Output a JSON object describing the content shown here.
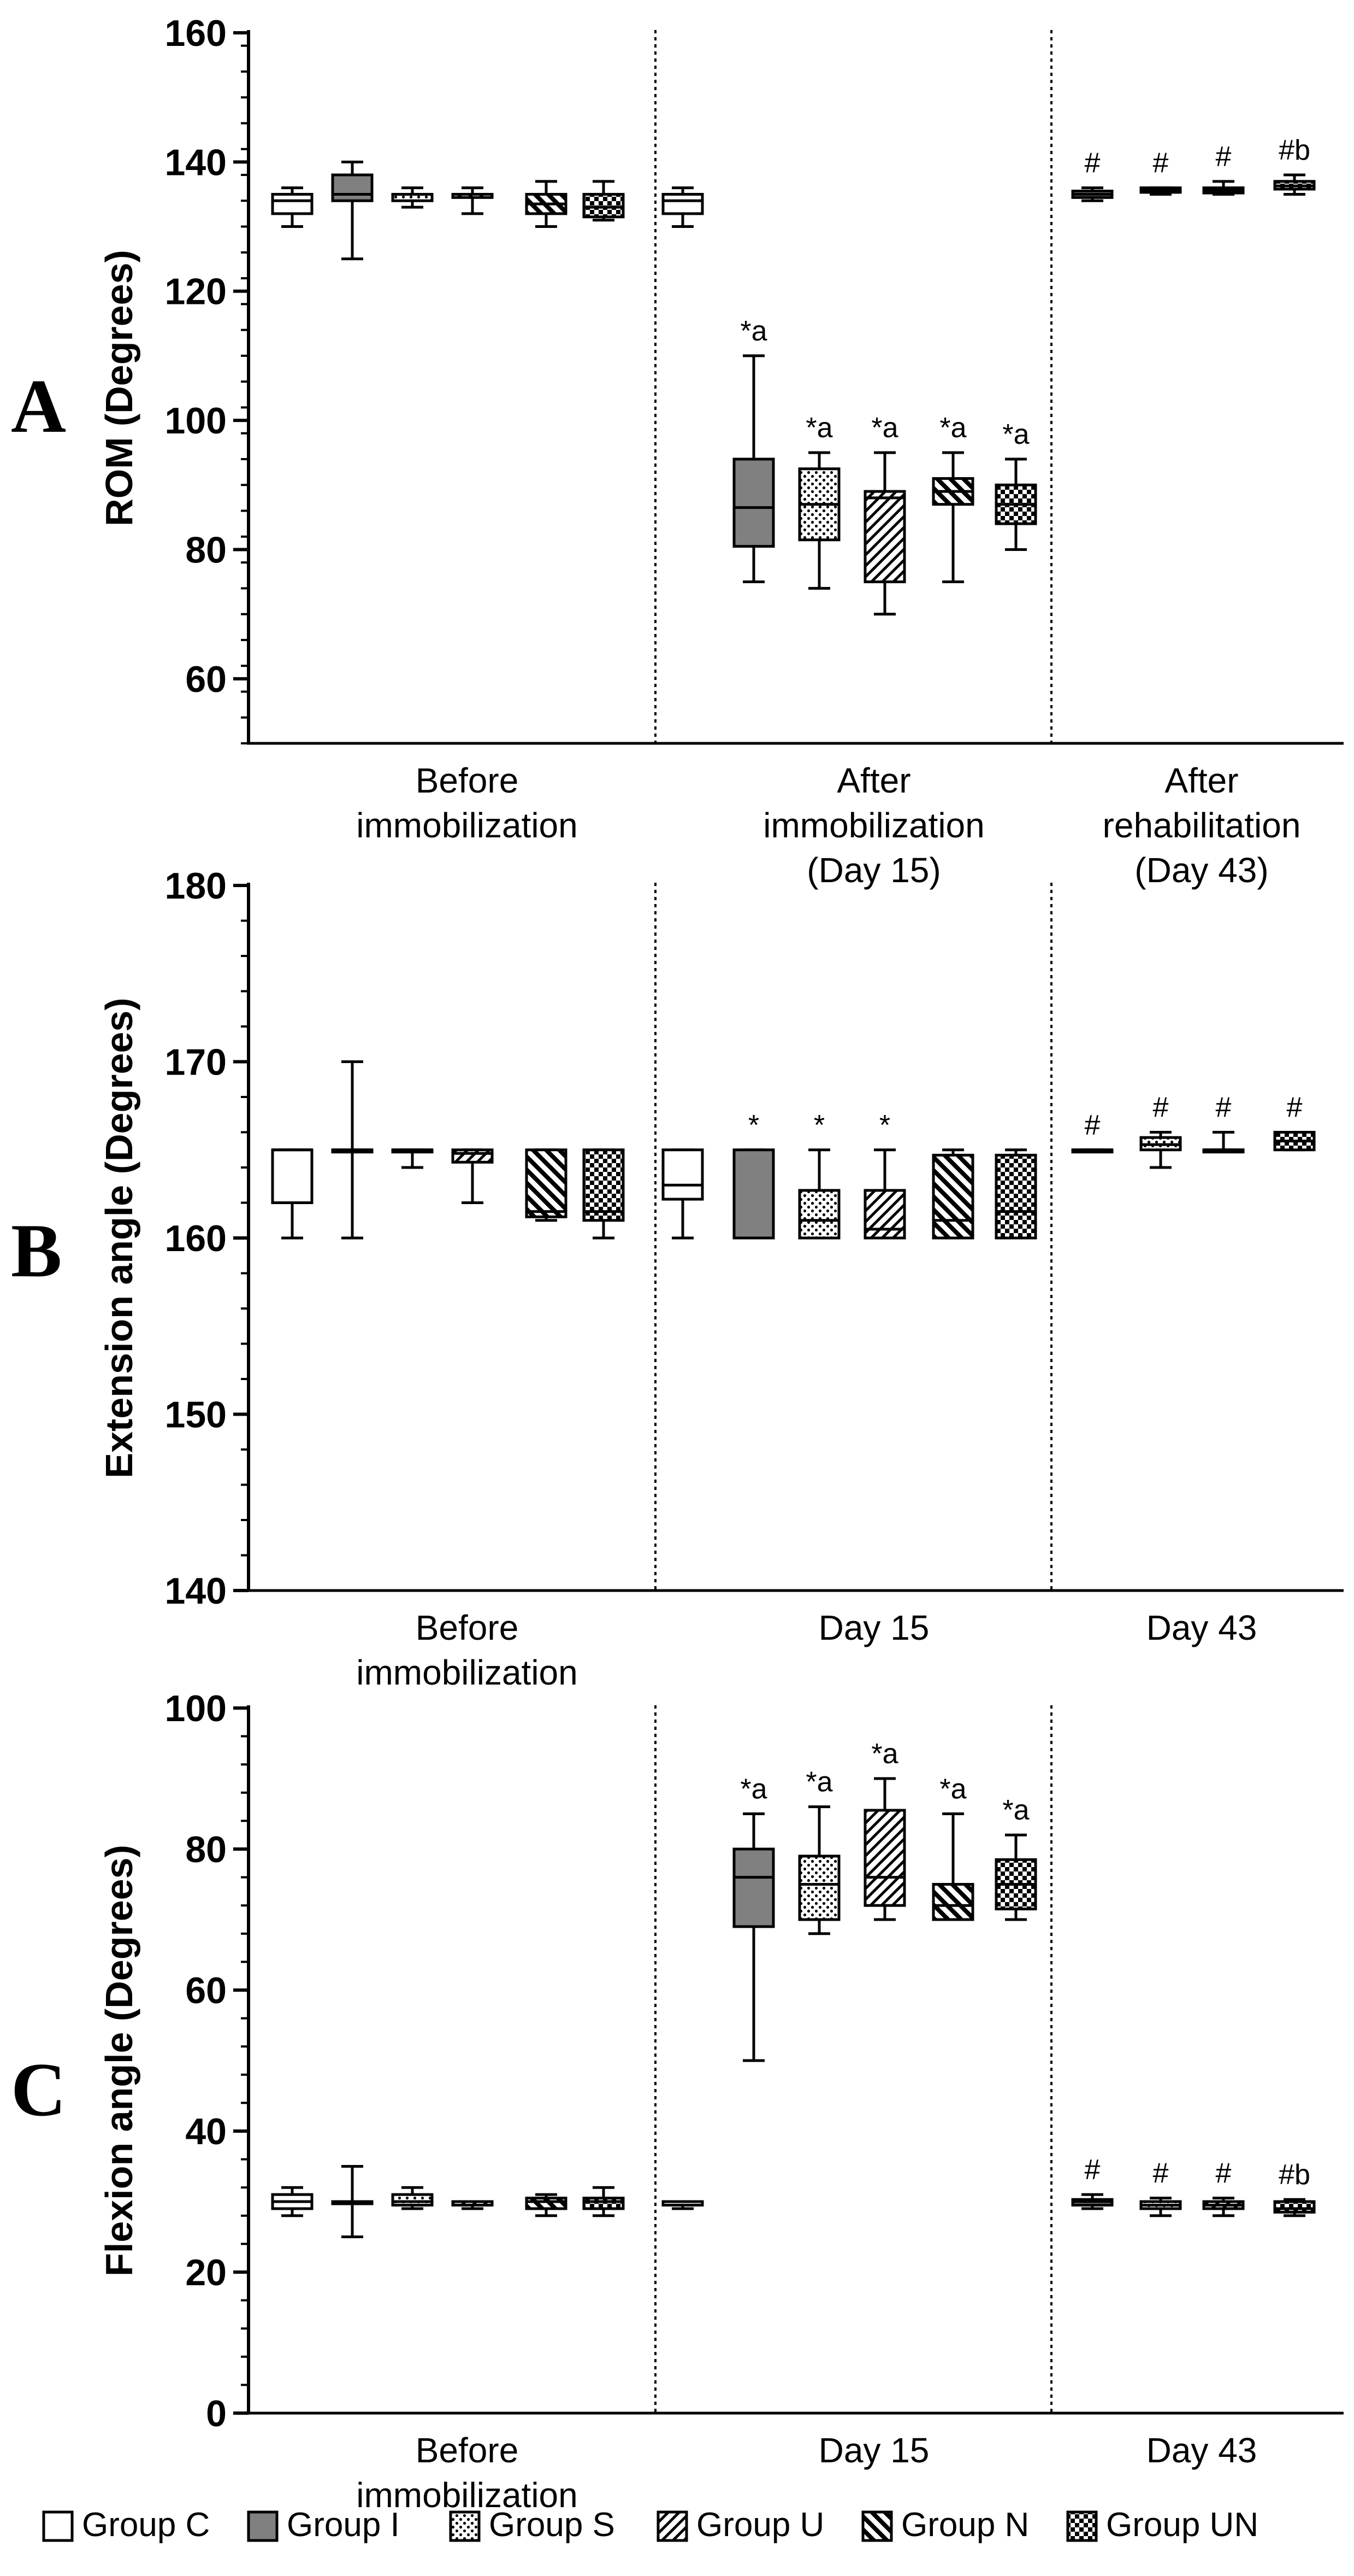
{
  "legend": [
    {
      "label": "Group C",
      "pattern": "white"
    },
    {
      "label": "Group I",
      "pattern": "gray"
    },
    {
      "label": "Group S",
      "pattern": "dots"
    },
    {
      "label": "Group U",
      "pattern": "diagup"
    },
    {
      "label": "Group N",
      "pattern": "diagdown"
    },
    {
      "label": "Group UN",
      "pattern": "checker"
    }
  ],
  "chart_data": [
    {
      "panel": "A",
      "type": "box",
      "ylabel": "ROM (Degrees)",
      "ylim": [
        50,
        160
      ],
      "yticks": [
        60,
        80,
        100,
        120,
        140,
        160
      ],
      "sections": [
        {
          "label_lines": [
            "Before",
            "immobilization"
          ],
          "boxes": [
            {
              "group": "Group C",
              "min": 130,
              "q1": 132,
              "median": 134,
              "q3": 135,
              "max": 136
            },
            {
              "group": "Group I",
              "min": 125,
              "q1": 134,
              "median": 135,
              "q3": 138,
              "max": 140
            },
            {
              "group": "Group S",
              "min": 133,
              "q1": 134,
              "median": 135,
              "q3": 135,
              "max": 136
            },
            {
              "group": "Group U",
              "min": 132,
              "q1": 134.5,
              "median": 135,
              "q3": 135,
              "max": 136
            },
            {
              "group": "Group N",
              "min": 130,
              "q1": 132,
              "median": 133.5,
              "q3": 135,
              "max": 137
            },
            {
              "group": "Group UN",
              "min": 131,
              "q1": 131.5,
              "median": 133,
              "q3": 135,
              "max": 137
            }
          ]
        },
        {
          "label_lines": [
            "After",
            "immobilization",
            "(Day 15)"
          ],
          "boxes": [
            {
              "group": "Group C",
              "min": 130,
              "q1": 132,
              "median": 134,
              "q3": 135,
              "max": 136
            },
            {
              "group": "Group I",
              "min": 75,
              "q1": 80.5,
              "median": 86.5,
              "q3": 94,
              "max": 110,
              "annotation": "*a"
            },
            {
              "group": "Group S",
              "min": 74,
              "q1": 81.5,
              "median": 87,
              "q3": 92.5,
              "max": 95,
              "annotation": "*a"
            },
            {
              "group": "Group U",
              "min": 70,
              "q1": 75,
              "median": 88,
              "q3": 89,
              "max": 95,
              "annotation": "*a"
            },
            {
              "group": "Group N",
              "min": 75,
              "q1": 87,
              "median": 89,
              "q3": 91,
              "max": 95,
              "annotation": "*a"
            },
            {
              "group": "Group UN",
              "min": 80,
              "q1": 84,
              "median": 87,
              "q3": 90,
              "max": 94,
              "annotation": "*a"
            }
          ]
        },
        {
          "label_lines": [
            "After",
            "rehabilitation",
            "(Day 43)"
          ],
          "boxes": [
            {
              "group": "Group I",
              "min": 134,
              "q1": 134.5,
              "median": 135,
              "q3": 135.5,
              "max": 136,
              "annotation": "#"
            },
            {
              "group": "Group S",
              "min": 135,
              "q1": 135.3,
              "median": 135.6,
              "q3": 136,
              "max": 136,
              "annotation": "#"
            },
            {
              "group": "Group U",
              "min": 135,
              "q1": 135.2,
              "median": 135.6,
              "q3": 136,
              "max": 137,
              "annotation": "#"
            },
            {
              "group": "Group UN",
              "min": 135,
              "q1": 135.8,
              "median": 136.3,
              "q3": 137,
              "max": 138,
              "annotation": "#b"
            }
          ]
        }
      ]
    },
    {
      "panel": "B",
      "type": "box",
      "ylabel": "Extension angle (Degrees)",
      "ylim": [
        140,
        180
      ],
      "yticks": [
        140,
        150,
        160,
        170,
        180
      ],
      "sections": [
        {
          "label_lines": [
            "Before",
            "immobilization"
          ],
          "boxes": [
            {
              "group": "Group C",
              "min": 160,
              "q1": 162,
              "median": 165,
              "q3": 165,
              "max": 165
            },
            {
              "group": "Group I",
              "min": 160,
              "q1": 165,
              "median": 165,
              "q3": 165,
              "max": 170
            },
            {
              "group": "Group S",
              "min": 164,
              "q1": 165,
              "median": 165,
              "q3": 165,
              "max": 165
            },
            {
              "group": "Group U",
              "min": 162,
              "q1": 164.3,
              "median": 164.8,
              "q3": 165,
              "max": 165
            },
            {
              "group": "Group N",
              "min": 161,
              "q1": 161.2,
              "median": 161.5,
              "q3": 165,
              "max": 165
            },
            {
              "group": "Group UN",
              "min": 160,
              "q1": 161,
              "median": 161.5,
              "q3": 165,
              "max": 165
            }
          ]
        },
        {
          "label_lines": [
            "Day 15"
          ],
          "boxes": [
            {
              "group": "Group C",
              "min": 160,
              "q1": 162.2,
              "median": 163,
              "q3": 165,
              "max": 165
            },
            {
              "group": "Group I",
              "min": 160,
              "q1": 160,
              "median": 160,
              "q3": 165,
              "max": 165,
              "annotation": "*"
            },
            {
              "group": "Group S",
              "min": 160,
              "q1": 160,
              "median": 161,
              "q3": 162.7,
              "max": 165,
              "annotation": "*"
            },
            {
              "group": "Group U",
              "min": 160,
              "q1": 160,
              "median": 160.5,
              "q3": 162.7,
              "max": 165,
              "annotation": "*"
            },
            {
              "group": "Group N",
              "min": 160,
              "q1": 160,
              "median": 161,
              "q3": 164.7,
              "max": 165
            },
            {
              "group": "Group UN",
              "min": 160,
              "q1": 160,
              "median": 161.5,
              "q3": 164.7,
              "max": 165
            }
          ]
        },
        {
          "label_lines": [
            "Day 43"
          ],
          "boxes": [
            {
              "group": "Group I",
              "min": 165,
              "q1": 165,
              "median": 165,
              "q3": 165,
              "max": 165,
              "annotation": "#"
            },
            {
              "group": "Group S",
              "min": 164,
              "q1": 165,
              "median": 165.3,
              "q3": 165.7,
              "max": 166,
              "annotation": "#"
            },
            {
              "group": "Group U",
              "min": 165,
              "q1": 165,
              "median": 165,
              "q3": 165,
              "max": 166,
              "annotation": "#"
            },
            {
              "group": "Group UN",
              "min": 165,
              "q1": 165,
              "median": 165.5,
              "q3": 166,
              "max": 166,
              "annotation": "#"
            }
          ]
        }
      ]
    },
    {
      "panel": "C",
      "type": "box",
      "ylabel": "Flexion angle (Degrees)",
      "ylim": [
        0,
        100
      ],
      "yticks": [
        0,
        20,
        40,
        60,
        80,
        100
      ],
      "sections": [
        {
          "label_lines": [
            "Before",
            "immobilization"
          ],
          "boxes": [
            {
              "group": "Group C",
              "min": 28,
              "q1": 29,
              "median": 30,
              "q3": 31,
              "max": 32
            },
            {
              "group": "Group I",
              "min": 25,
              "q1": 30,
              "median": 30,
              "q3": 30,
              "max": 35
            },
            {
              "group": "Group S",
              "min": 29,
              "q1": 29.5,
              "median": 30,
              "q3": 31,
              "max": 32
            },
            {
              "group": "Group U",
              "min": 29,
              "q1": 29.5,
              "median": 30,
              "q3": 30,
              "max": 30
            },
            {
              "group": "Group N",
              "min": 28,
              "q1": 29,
              "median": 30,
              "q3": 30.5,
              "max": 31
            },
            {
              "group": "Group UN",
              "min": 28,
              "q1": 29,
              "median": 30,
              "q3": 30.5,
              "max": 32
            }
          ]
        },
        {
          "label_lines": [
            "Day 15"
          ],
          "boxes": [
            {
              "group": "Group C",
              "min": 29,
              "q1": 29.5,
              "median": 30,
              "q3": 30,
              "max": 30
            },
            {
              "group": "Group I",
              "min": 50,
              "q1": 69,
              "median": 76,
              "q3": 80,
              "max": 85,
              "annotation": "*a"
            },
            {
              "group": "Group S",
              "min": 68,
              "q1": 70,
              "median": 75,
              "q3": 79,
              "max": 86,
              "annotation": "*a"
            },
            {
              "group": "Group U",
              "min": 70,
              "q1": 72,
              "median": 76,
              "q3": 85.5,
              "max": 90,
              "annotation": "*a"
            },
            {
              "group": "Group N",
              "min": 70,
              "q1": 70,
              "median": 72,
              "q3": 75,
              "max": 85,
              "annotation": "*a"
            },
            {
              "group": "Group UN",
              "min": 70,
              "q1": 71.5,
              "median": 75,
              "q3": 78.5,
              "max": 82,
              "annotation": "*a"
            }
          ]
        },
        {
          "label_lines": [
            "Day 43"
          ],
          "boxes": [
            {
              "group": "Group I",
              "min": 29,
              "q1": 29.5,
              "median": 30,
              "q3": 30.3,
              "max": 31,
              "annotation": "#"
            },
            {
              "group": "Group S",
              "min": 28,
              "q1": 29,
              "median": 29.5,
              "q3": 30,
              "max": 30.5,
              "annotation": "#"
            },
            {
              "group": "Group U",
              "min": 28,
              "q1": 29,
              "median": 29.5,
              "q3": 30,
              "max": 30.5,
              "annotation": "#"
            },
            {
              "group": "Group UN",
              "min": 28,
              "q1": 28.5,
              "median": 29,
              "q3": 30,
              "max": 30.3,
              "annotation": "#b"
            }
          ]
        }
      ]
    }
  ]
}
